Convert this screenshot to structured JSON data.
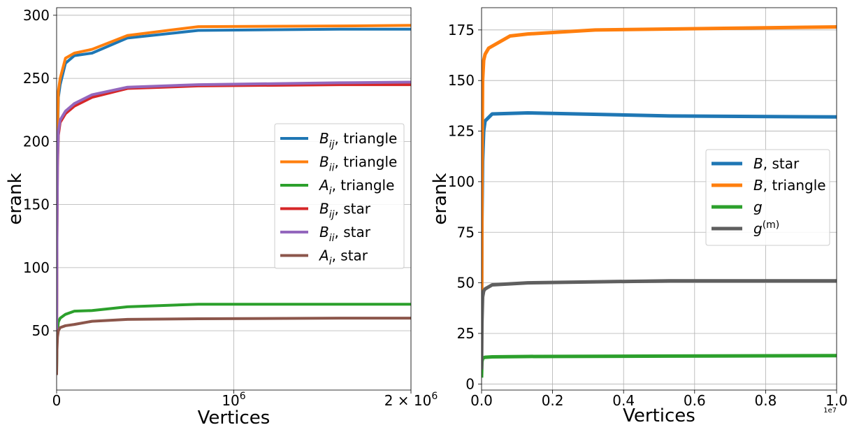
{
  "chart_data": [
    {
      "type": "line",
      "xlabel": "Vertices",
      "ylabel": "erank",
      "xlim": [
        0,
        2000000
      ],
      "ylim": [
        3,
        306
      ],
      "x_ticks": [
        {
          "value": 0,
          "label": "0"
        },
        {
          "value": 1000000,
          "label": "10",
          "sup": "6"
        },
        {
          "value": 2000000,
          "label": "2 × 10",
          "sup": "6"
        }
      ],
      "y_ticks": [
        50,
        100,
        150,
        200,
        250,
        300
      ],
      "grid": true,
      "legend_position": "center-right",
      "series": [
        {
          "name": "B",
          "sub": "ij",
          "suffix": ", triangle",
          "color": "#1f77b4",
          "x": [
            0,
            2000,
            5000,
            10000,
            20000,
            50000,
            100000,
            200000,
            400000,
            800000,
            1600000,
            2000000
          ],
          "y": [
            40,
            150,
            200,
            235,
            245,
            262,
            268,
            270,
            282,
            288,
            289,
            289
          ]
        },
        {
          "name": "B",
          "sub": "ii",
          "suffix": ", triangle",
          "color": "#ff7f0e",
          "x": [
            0,
            2000,
            5000,
            10000,
            20000,
            50000,
            100000,
            200000,
            400000,
            800000,
            1600000,
            2000000
          ],
          "y": [
            45,
            160,
            210,
            240,
            250,
            266,
            270,
            273,
            284,
            291,
            291.5,
            292
          ]
        },
        {
          "name": "A",
          "sub": "i",
          "suffix": ", triangle",
          "color": "#2ca02c",
          "x": [
            0,
            2000,
            5000,
            10000,
            20000,
            50000,
            100000,
            200000,
            400000,
            800000,
            1600000,
            2000000
          ],
          "y": [
            17,
            40,
            50,
            57,
            60,
            63,
            65.5,
            66,
            69,
            71,
            71,
            71
          ]
        },
        {
          "name": "B",
          "sub": "ij",
          "suffix": ", star",
          "color": "#d62728",
          "x": [
            0,
            2000,
            5000,
            10000,
            20000,
            50000,
            100000,
            200000,
            400000,
            800000,
            1600000,
            2000000
          ],
          "y": [
            40,
            120,
            180,
            205,
            215,
            222,
            228,
            235,
            242,
            244,
            245,
            245
          ]
        },
        {
          "name": "B",
          "sub": "ii",
          "suffix": ", star",
          "color": "#9467bd",
          "x": [
            0,
            2000,
            5000,
            10000,
            20000,
            50000,
            100000,
            200000,
            400000,
            800000,
            1600000,
            2000000
          ],
          "y": [
            42,
            125,
            185,
            208,
            217,
            224,
            230,
            237,
            243,
            245,
            246.5,
            247
          ]
        },
        {
          "name": "A",
          "sub": "i",
          "suffix": ", star",
          "color": "#8c564b",
          "x": [
            0,
            2000,
            5000,
            10000,
            20000,
            50000,
            100000,
            200000,
            400000,
            800000,
            1600000,
            2000000
          ],
          "y": [
            16,
            35,
            45,
            50,
            52.5,
            54,
            55,
            57.5,
            59,
            59.5,
            60,
            60
          ]
        }
      ]
    },
    {
      "type": "line",
      "xlabel": "Vertices",
      "ylabel": "erank",
      "xlim": [
        0,
        10000000
      ],
      "ylim": [
        -3,
        186
      ],
      "x_offset_label": "1e7",
      "x_ticks": [
        {
          "value": 0,
          "label": "0.0"
        },
        {
          "value": 2000000,
          "label": "0.2"
        },
        {
          "value": 4000000,
          "label": "0.4"
        },
        {
          "value": 6000000,
          "label": "0.6"
        },
        {
          "value": 8000000,
          "label": "0.8"
        },
        {
          "value": 10000000,
          "label": "1.0"
        }
      ],
      "y_ticks": [
        0,
        25,
        50,
        75,
        100,
        125,
        150,
        175
      ],
      "grid": true,
      "legend_position": "center-right",
      "series": [
        {
          "name": "B",
          "sub": "",
          "suffix": ", star",
          "color": "#1f77b4",
          "x": [
            0,
            10000,
            30000,
            60000,
            100000,
            300000,
            1300000,
            5300000,
            10000000
          ],
          "y": [
            30,
            80,
            110,
            125,
            130,
            133.5,
            134,
            132.5,
            132
          ]
        },
        {
          "name": "B",
          "sub": "",
          "suffix": ", triangle",
          "color": "#ff7f0e",
          "x": [
            0,
            10000,
            30000,
            60000,
            100000,
            200000,
            800000,
            1300000,
            3200000,
            10000000
          ],
          "y": [
            15,
            100,
            150,
            160,
            163,
            166,
            172,
            173,
            175,
            176.5
          ]
        },
        {
          "name": "g",
          "sub": "",
          "suffix": "",
          "color": "#2ca02c",
          "x": [
            0,
            10000,
            30000,
            60000,
            100000,
            300000,
            1300000,
            5300000,
            10000000
          ],
          "y": [
            4,
            11,
            12.5,
            13,
            13.2,
            13.4,
            13.6,
            13.8,
            14
          ]
        },
        {
          "name": "g",
          "sup": "(m)",
          "sub": "",
          "suffix": "",
          "color": "#5f5f5f",
          "x": [
            0,
            10000,
            30000,
            60000,
            100000,
            300000,
            1300000,
            5300000,
            10000000
          ],
          "y": [
            8,
            30,
            43,
            46,
            47,
            49,
            50,
            51,
            51
          ]
        }
      ]
    }
  ]
}
